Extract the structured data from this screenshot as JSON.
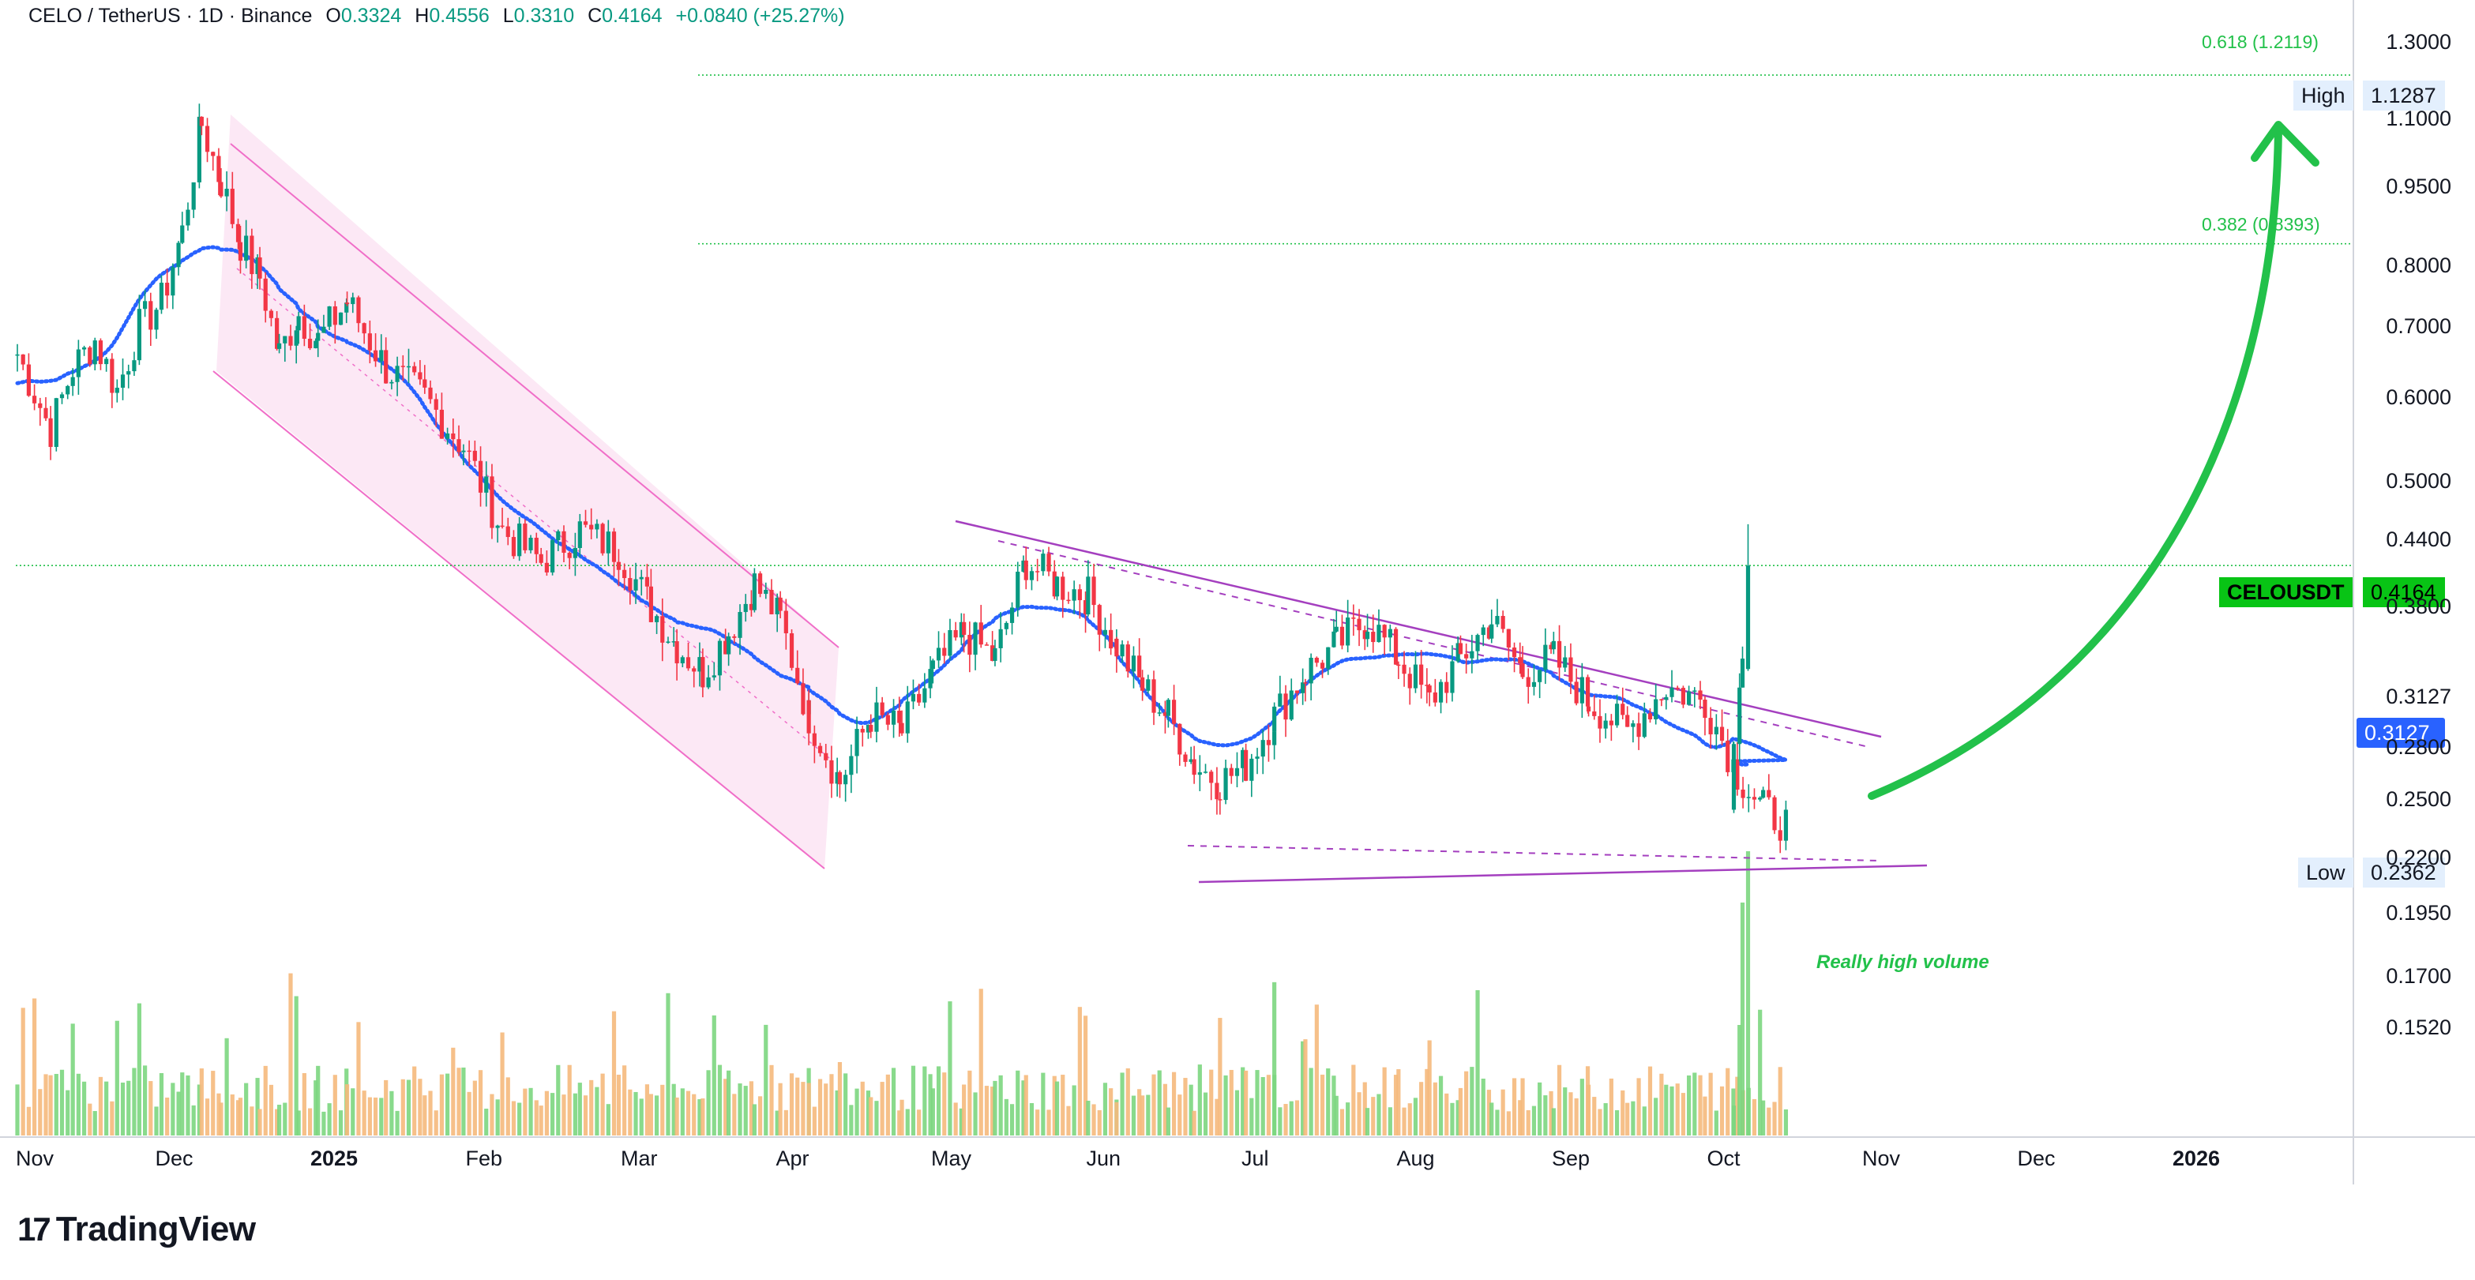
{
  "header": {
    "symbol": "CELO / TetherUS · 1D · Binance",
    "o_label": "O",
    "o": "0.3324",
    "h_label": "H",
    "h": "0.4556",
    "l_label": "L",
    "l": "0.3310",
    "c_label": "C",
    "c": "0.4164",
    "change": "+0.0840 (+25.27%)"
  },
  "brand": {
    "logo": "17",
    "name": "TradingView"
  },
  "annotations": {
    "volume_note": "Really high volume"
  },
  "fib_levels": [
    {
      "label": "0.618 (1.2119)",
      "price": 1.2119
    },
    {
      "label": "0.382 (0.8393)",
      "price": 0.8393
    }
  ],
  "price_tags": {
    "high": {
      "label": "High",
      "value": "1.1287"
    },
    "symbol": {
      "label": "CELOUSDT",
      "value": "0.4164"
    },
    "ma": {
      "value": "0.3127"
    },
    "low": {
      "label": "Low",
      "value": "0.2362"
    }
  },
  "colors": {
    "up": "#089981",
    "down": "#f23645",
    "ma": "#2962ff",
    "accent": "#22c14a",
    "channel": "#e040fb",
    "triangle": "#a43fbf"
  },
  "chart_data": {
    "type": "candlestick",
    "title": "CELO / TetherUS · 1D · Binance",
    "scale": "log",
    "x_ticks": [
      "Nov",
      "Dec",
      "2025",
      "Feb",
      "Mar",
      "Apr",
      "May",
      "Jun",
      "Jul",
      "Aug",
      "Sep",
      "Oct",
      "Nov",
      "Dec",
      "2026"
    ],
    "y_ticks": [
      "1.3000",
      "1.1000",
      "0.9500",
      "0.8000",
      "0.7000",
      "0.6000",
      "0.5000",
      "0.4400",
      "0.3800",
      "0.3127",
      "0.2800",
      "0.2500",
      "0.2200",
      "0.1950",
      "0.1700",
      "0.1520"
    ],
    "ylim": [
      0.14,
      1.36
    ],
    "last": {
      "open": 0.3324,
      "high": 0.4556,
      "low": 0.331,
      "close": 0.4164
    },
    "period_high": 1.1287,
    "period_low": 0.2362,
    "moving_average_last": 0.3127,
    "price_path": [
      [
        "Nov",
        0.66
      ],
      [
        "Nov",
        0.56
      ],
      [
        "Nov",
        0.64
      ],
      [
        "Nov",
        0.68
      ],
      [
        "Nov",
        0.61
      ],
      [
        "Nov",
        0.7
      ],
      [
        "Nov",
        0.74
      ],
      [
        "Dec",
        0.86
      ],
      [
        "Dec",
        1.09
      ],
      [
        "Dec",
        0.96
      ],
      [
        "Dec",
        0.84
      ],
      [
        "Dec",
        0.78
      ],
      [
        "Dec",
        0.66
      ],
      [
        "Dec",
        0.72
      ],
      [
        "Dec",
        0.68
      ],
      [
        "2025",
        0.74
      ],
      [
        "2025",
        0.64
      ],
      [
        "2025",
        0.6
      ],
      [
        "2025",
        0.54
      ],
      [
        "Feb",
        0.45
      ],
      [
        "Feb",
        0.42
      ],
      [
        "Feb",
        0.45
      ],
      [
        "Feb",
        0.43
      ],
      [
        "Mar",
        0.38
      ],
      [
        "Mar",
        0.35
      ],
      [
        "Mar",
        0.33
      ],
      [
        "Mar",
        0.36
      ],
      [
        "Mar",
        0.4
      ],
      [
        "Mar",
        0.37
      ],
      [
        "Apr",
        0.3
      ],
      [
        "Apr",
        0.26
      ],
      [
        "Apr",
        0.3
      ],
      [
        "Apr",
        0.29
      ],
      [
        "Apr",
        0.33
      ],
      [
        "May",
        0.36
      ],
      [
        "May",
        0.34
      ],
      [
        "May",
        0.42
      ],
      [
        "May",
        0.4
      ],
      [
        "May",
        0.39
      ],
      [
        "Jun",
        0.35
      ],
      [
        "Jun",
        0.32
      ],
      [
        "Jun",
        0.3
      ],
      [
        "Jun",
        0.27
      ],
      [
        "Jun",
        0.26
      ],
      [
        "Jun",
        0.27
      ],
      [
        "Jul",
        0.3
      ],
      [
        "Jul",
        0.33
      ],
      [
        "Jul",
        0.35
      ],
      [
        "Jul",
        0.37
      ],
      [
        "Jul",
        0.34
      ],
      [
        "Aug",
        0.31
      ],
      [
        "Aug",
        0.34
      ],
      [
        "Aug",
        0.37
      ],
      [
        "Aug",
        0.33
      ],
      [
        "Aug",
        0.34
      ],
      [
        "Sep",
        0.31
      ],
      [
        "Sep",
        0.29
      ],
      [
        "Sep",
        0.32
      ],
      [
        "Sep",
        0.31
      ],
      [
        "Oct",
        0.265
      ],
      [
        "Oct",
        0.245
      ],
      [
        "Oct",
        0.2362
      ],
      [
        "Oct",
        0.27
      ],
      [
        "Oct",
        0.3324
      ],
      [
        "Oct",
        0.4164
      ]
    ],
    "drawings": [
      {
        "kind": "descending channel",
        "from": "Dec",
        "to": "Apr"
      },
      {
        "kind": "descending trendline",
        "from": "May",
        "to": "Oct"
      },
      {
        "kind": "support line",
        "from": "Jun",
        "to": "Oct"
      },
      {
        "kind": "upward arrow",
        "toward": "High"
      }
    ],
    "grid": false,
    "legend": "top-left"
  }
}
